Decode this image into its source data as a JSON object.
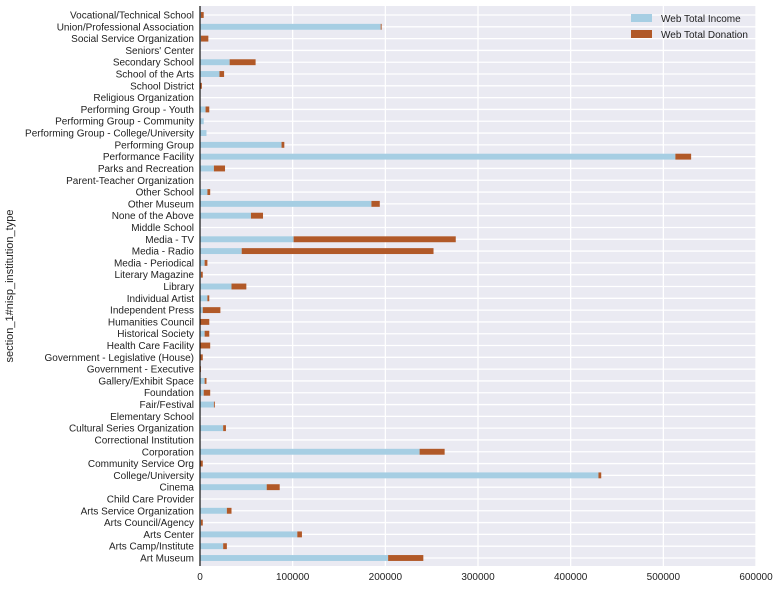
{
  "chart_data": {
    "type": "bar",
    "orientation": "horizontal",
    "stacked": true,
    "ylabel": "section_1#nisp_institution_type",
    "xlabel": "",
    "xlim": [
      0,
      600000
    ],
    "xticks": [
      0,
      100000,
      200000,
      300000,
      400000,
      500000,
      600000
    ],
    "xtick_labels": [
      "0",
      "100000",
      "200000",
      "300000",
      "400000",
      "500000",
      "600000"
    ],
    "grid": true,
    "legend_position": "top-right",
    "categories": [
      "Art Museum",
      "Arts Camp/Institute",
      "Arts Center",
      "Arts Council/Agency",
      "Arts Service Organization",
      "Child Care Provider",
      "Cinema",
      "College/University",
      "Community Service Org",
      "Corporation",
      "Correctional Institution",
      "Cultural Series Organization",
      "Elementary School",
      "Fair/Festival",
      "Foundation",
      "Gallery/Exhibit Space",
      "Government - Executive",
      "Government - Legislative (House)",
      "Health Care Facility",
      "Historical Society",
      "Humanities Council",
      "Independent Press",
      "Individual Artist",
      "Library",
      "Literary Magazine",
      "Media - Periodical",
      "Media - Radio",
      "Media - TV",
      "Middle School",
      "None of the Above",
      "Other Museum",
      "Other School",
      "Parent-Teacher Organization",
      "Parks and Recreation",
      "Performance Facility",
      "Performing Group",
      "Performing Group - College/University",
      "Performing Group - Community",
      "Performing Group - Youth",
      "Religious Organization",
      "School District",
      "School of the Arts",
      "Secondary School",
      "Seniors' Center",
      "Social Service Organization",
      "Union/Professional Association",
      "Vocational/Technical School"
    ],
    "series": [
      {
        "name": "Web Total Income",
        "color": "#a6cee3",
        "values": [
          203000,
          25000,
          105000,
          1000,
          29000,
          0,
          72000,
          430000,
          0,
          237000,
          0,
          25000,
          0,
          15000,
          4000,
          5000,
          0,
          0,
          0,
          5000,
          0,
          3000,
          8000,
          34000,
          1000,
          5000,
          45000,
          101000,
          0,
          55000,
          185000,
          8000,
          0,
          15000,
          513000,
          88000,
          7000,
          4000,
          6000,
          0,
          0,
          21000,
          32000,
          0,
          1000,
          195000,
          1000
        ]
      },
      {
        "name": "Web Total Donation",
        "color": "#b15928",
        "values": [
          38000,
          4000,
          5000,
          2000,
          5000,
          0,
          14000,
          3000,
          3000,
          27000,
          0,
          3000,
          0,
          1000,
          7000,
          2000,
          1000,
          3000,
          11000,
          5000,
          10000,
          19000,
          2000,
          16000,
          2000,
          3000,
          207000,
          175000,
          0,
          13000,
          9000,
          3000,
          0,
          12000,
          17000,
          3000,
          0,
          0,
          4000,
          0,
          2000,
          5000,
          28000,
          0,
          8000,
          1000,
          3000
        ]
      }
    ]
  }
}
